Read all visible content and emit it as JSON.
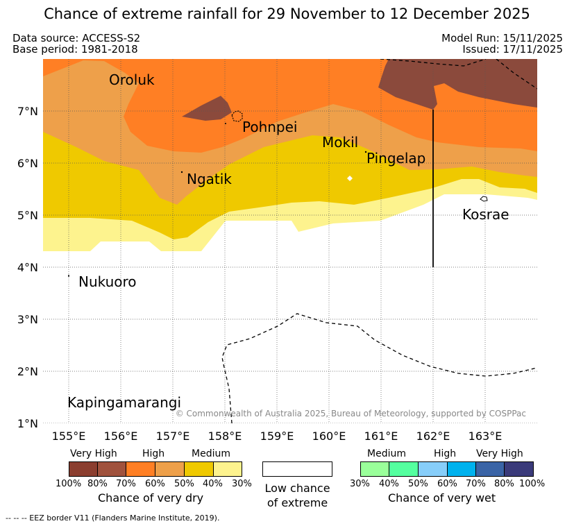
{
  "title": "Chance of extreme rainfall for 29 November to 12 December 2025",
  "meta": {
    "data_source": "Data source: ACCESS-S2",
    "base_period": "Base period: 1981-2018",
    "model_run": "Model Run: 15/11/2025",
    "issued": "Issued: 17/11/2025"
  },
  "map": {
    "lat_labels": [
      "7°N",
      "6°N",
      "5°N",
      "4°N",
      "3°N",
      "2°N",
      "1°N"
    ],
    "lon_labels": [
      "155°E",
      "156°E",
      "157°E",
      "158°E",
      "159°E",
      "160°E",
      "161°E",
      "162°E",
      "163°E"
    ],
    "places": {
      "oroluk": "Oroluk",
      "pohnpei": "Pohnpei",
      "mokil": "Mokil",
      "pingelap": "Pingelap",
      "ngatik": "Ngatik",
      "kosrae": "Kosrae",
      "nukuoro": "Nukuoro",
      "kapingamarangi": "Kapingamarangi"
    },
    "copyright": "© Commonwealth of Australia 2025, Bureau of Meteorology, supported by COSPPac"
  },
  "legend": {
    "dry": {
      "headers": [
        "Very High",
        "High",
        "Medium"
      ],
      "ticks": [
        "100%",
        "80%",
        "70%",
        "60%",
        "50%",
        "40%",
        "30%"
      ],
      "title": "Chance of very dry",
      "colors": [
        "#8b3e2f",
        "#a0523d",
        "#ff7f24",
        "#eea04a",
        "#efc900",
        "#fdf38e"
      ]
    },
    "low": {
      "line1": "Low chance",
      "line2": "of extreme"
    },
    "wet": {
      "headers": [
        "Medium",
        "High",
        "Very High"
      ],
      "ticks": [
        "30%",
        "40%",
        "50%",
        "60%",
        "70%",
        "80%",
        "100%"
      ],
      "title": "Chance of very wet",
      "colors": [
        "#9aff9a",
        "#54ff9f",
        "#87cefa",
        "#00b2ee",
        "#3a64a6",
        "#3a3a7a"
      ]
    }
  },
  "footnote": "-- -- -- EEZ border V11 (Flanders Marine Institute, 2019)."
}
